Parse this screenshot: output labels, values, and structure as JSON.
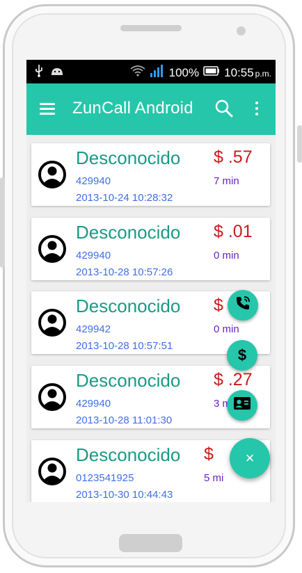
{
  "status_bar": {
    "battery": "100%",
    "time": "10:55",
    "ampm": "p.m."
  },
  "app_bar": {
    "title": "ZunCall Android"
  },
  "calls": [
    {
      "name": "Desconocido",
      "number": "429940",
      "date": "2013-10-24 10:28:32",
      "cost": "$ .57",
      "duration": "7 min"
    },
    {
      "name": "Desconocido",
      "number": "429940",
      "date": "2013-10-28 10:57:26",
      "cost": "$ .01",
      "duration": "0 min"
    },
    {
      "name": "Desconocido",
      "number": "429942",
      "date": "2013-10-28 10:57:51",
      "cost": "$",
      "duration": "0 min"
    },
    {
      "name": "Desconocido",
      "number": "429940",
      "date": "2013-10-28 11:01:30",
      "cost": "$ .27",
      "duration": "3 m"
    },
    {
      "name": "Desconocido",
      "number": "0123541925",
      "date": "2013-10-30 10:44:43",
      "cost": "$",
      "duration": "5 mi"
    }
  ],
  "fab": {
    "dollar_symbol": "$",
    "close_symbol": "×"
  },
  "colors": {
    "accent": "#26c6aa",
    "name": "#1a9a85",
    "cost": "#cc1b1b",
    "duration": "#6a1fc2",
    "meta": "#3f6fe8"
  }
}
